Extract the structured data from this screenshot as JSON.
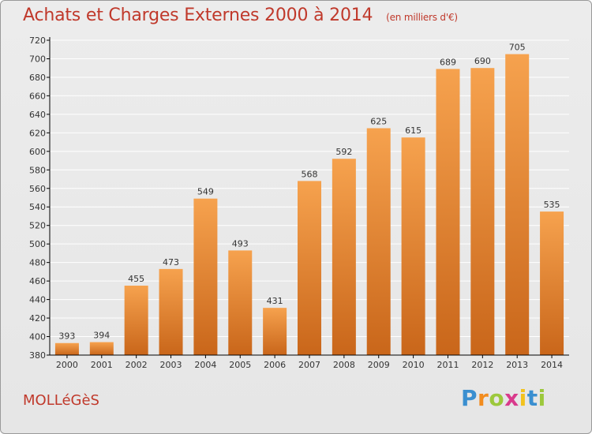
{
  "header": {
    "title": "Achats et Charges Externes 2000 à 2014",
    "unit": "(en milliers d'€)"
  },
  "footer": {
    "commune": "MOLLéGèS",
    "logo": {
      "letters": [
        "P",
        "r",
        "o",
        "x",
        "i",
        "t",
        "i"
      ],
      "colors": [
        "#3a8fd0",
        "#f28c1e",
        "#9cc83c",
        "#d93a8c",
        "#f2c21e",
        "#3a8fd0",
        "#9cc83c"
      ]
    }
  },
  "colors": {
    "bar_top": "#f6a24e",
    "bar_bottom": "#c9661a",
    "grid": "#ffffff",
    "axis": "#000000"
  },
  "chart_data": {
    "type": "bar",
    "title": "Achats et Charges Externes 2000 à 2014",
    "subtitle": "(en milliers d'€)",
    "categories": [
      "2000",
      "2001",
      "2002",
      "2003",
      "2004",
      "2005",
      "2006",
      "2007",
      "2008",
      "2009",
      "2010",
      "2011",
      "2012",
      "2013",
      "2014"
    ],
    "values": [
      393,
      394,
      455,
      473,
      549,
      493,
      431,
      568,
      592,
      625,
      615,
      689,
      690,
      705,
      535
    ],
    "ylim": [
      380,
      720
    ],
    "yticks": [
      380,
      400,
      420,
      440,
      460,
      480,
      500,
      520,
      540,
      560,
      580,
      600,
      620,
      640,
      660,
      680,
      700,
      720
    ],
    "grid": true,
    "xlabel": "",
    "ylabel": ""
  }
}
